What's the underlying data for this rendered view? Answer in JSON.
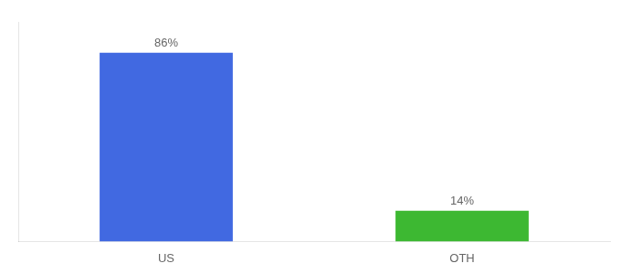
{
  "chart_data": {
    "type": "bar",
    "categories": [
      "US",
      "OTH"
    ],
    "values": [
      86,
      14
    ],
    "value_labels": [
      "86%",
      "14%"
    ],
    "colors": [
      "#4169e1",
      "#3db832"
    ],
    "ylim": [
      0,
      100
    ],
    "tick_labels": "x",
    "data_labels": true,
    "grid": false
  }
}
